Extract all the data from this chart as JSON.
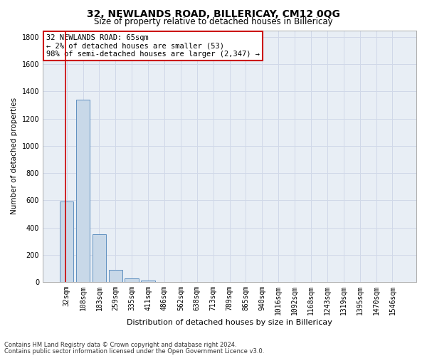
{
  "title": "32, NEWLANDS ROAD, BILLERICAY, CM12 0QG",
  "subtitle": "Size of property relative to detached houses in Billericay",
  "xlabel": "Distribution of detached houses by size in Billericay",
  "ylabel": "Number of detached properties",
  "categories": [
    "32sqm",
    "108sqm",
    "183sqm",
    "259sqm",
    "335sqm",
    "411sqm",
    "486sqm",
    "562sqm",
    "638sqm",
    "713sqm",
    "789sqm",
    "865sqm",
    "940sqm",
    "1016sqm",
    "1092sqm",
    "1168sqm",
    "1243sqm",
    "1319sqm",
    "1395sqm",
    "1470sqm",
    "1546sqm"
  ],
  "values": [
    590,
    1340,
    350,
    90,
    28,
    8,
    1,
    0,
    0,
    0,
    0,
    0,
    0,
    0,
    0,
    0,
    0,
    0,
    0,
    0,
    0
  ],
  "bar_color": "#c8d8e8",
  "bar_edge_color": "#6090c0",
  "grid_color": "#d0d8e8",
  "background_color": "#e8eef5",
  "annotation_text": "32 NEWLANDS ROAD: 65sqm\n← 2% of detached houses are smaller (53)\n98% of semi-detached houses are larger (2,347) →",
  "annotation_box_color": "#ffffff",
  "annotation_box_edge_color": "#cc0000",
  "marker_color": "#cc0000",
  "ylim": [
    0,
    1850
  ],
  "yticks": [
    0,
    200,
    400,
    600,
    800,
    1000,
    1200,
    1400,
    1600,
    1800
  ],
  "footnote1": "Contains HM Land Registry data © Crown copyright and database right 2024.",
  "footnote2": "Contains public sector information licensed under the Open Government Licence v3.0.",
  "title_fontsize": 10,
  "subtitle_fontsize": 8.5,
  "xlabel_fontsize": 8,
  "ylabel_fontsize": 7.5,
  "tick_fontsize": 7,
  "annotation_fontsize": 7.5,
  "footnote_fontsize": 6
}
